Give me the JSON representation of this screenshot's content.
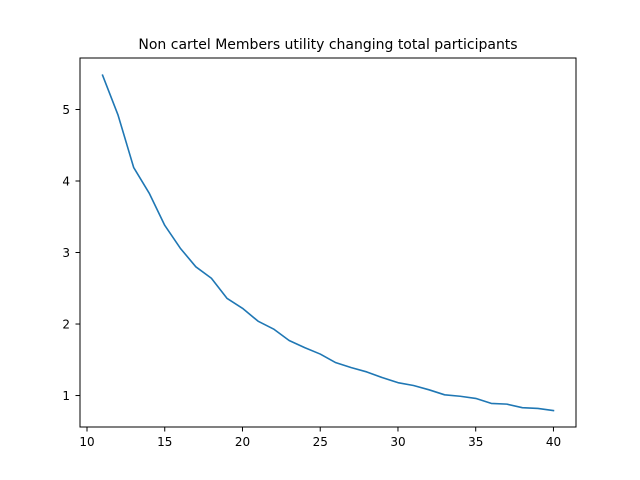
{
  "chart_data": {
    "type": "line",
    "title": "Non cartel Members utility changing total participants",
    "xlabel": "",
    "ylabel": "",
    "xlim": [
      9.55,
      41.45
    ],
    "ylim": [
      0.56,
      5.72
    ],
    "xticks": [
      10,
      15,
      20,
      25,
      30,
      35,
      40
    ],
    "yticks": [
      1,
      2,
      3,
      4,
      5
    ],
    "grid": false,
    "line_color": "#1f77b4",
    "series": [
      {
        "x": [
          11,
          12,
          13,
          14,
          15,
          16,
          17,
          18,
          19,
          20,
          21,
          22,
          23,
          24,
          25,
          26,
          27,
          28,
          29,
          30,
          31,
          32,
          33,
          34,
          35,
          36,
          37,
          38,
          39,
          40
        ],
        "y": [
          5.48,
          4.92,
          4.19,
          3.83,
          3.38,
          3.06,
          2.8,
          2.64,
          2.36,
          2.22,
          2.04,
          1.93,
          1.77,
          1.67,
          1.58,
          1.46,
          1.39,
          1.33,
          1.25,
          1.18,
          1.14,
          1.08,
          1.01,
          0.99,
          0.96,
          0.89,
          0.88,
          0.83,
          0.82,
          0.79
        ]
      }
    ]
  }
}
